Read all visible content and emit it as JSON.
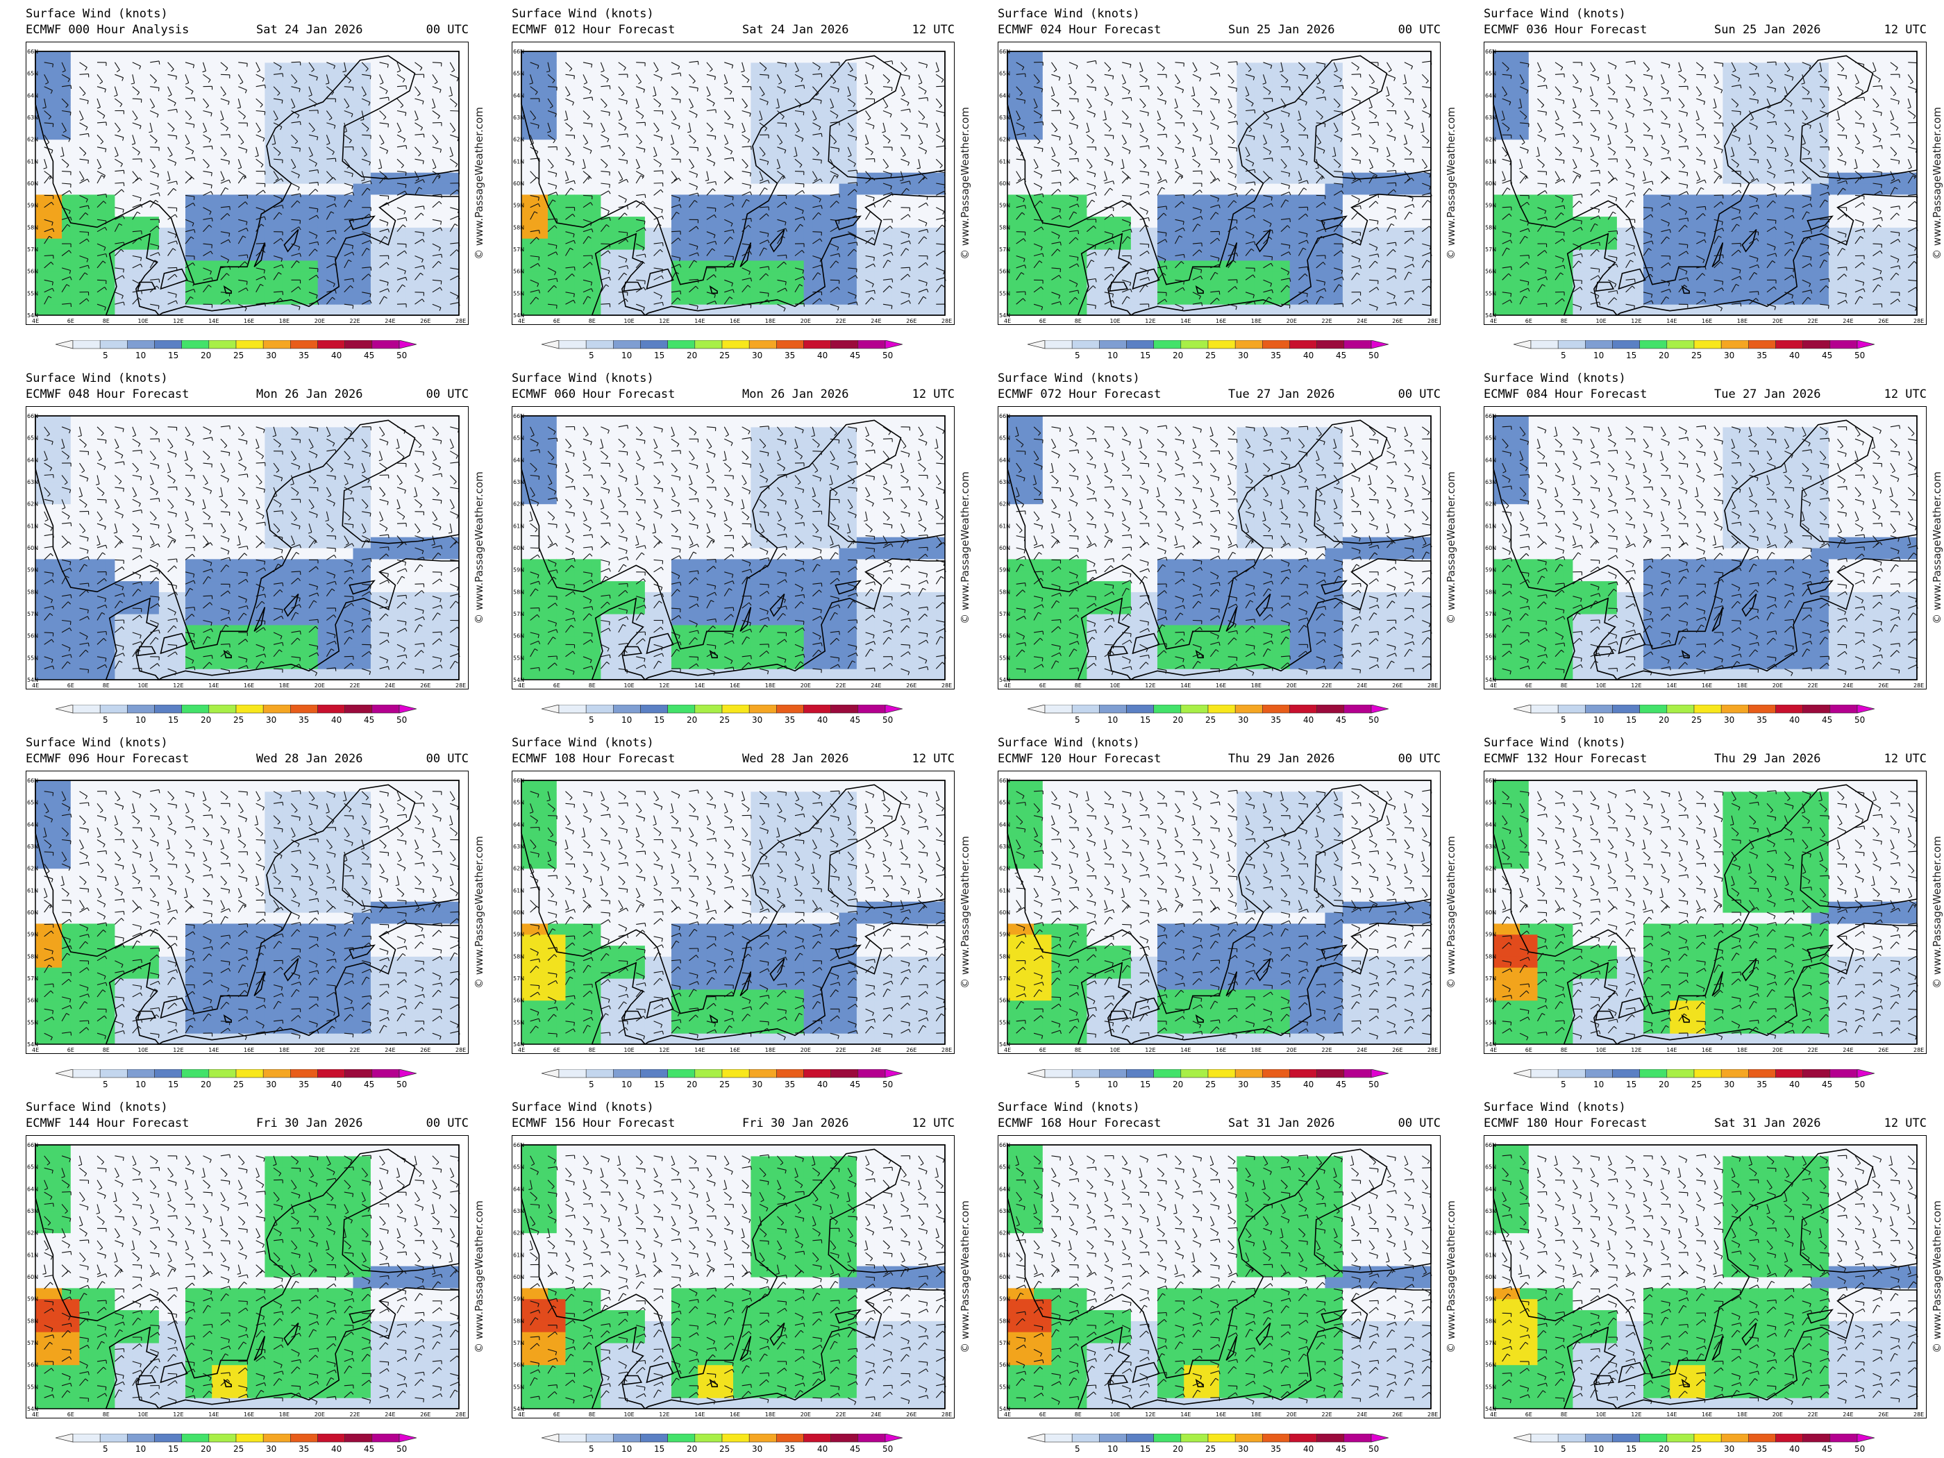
{
  "header_line1": "Surface Wind (knots)",
  "credit": "© www.PassageWeather.com",
  "legend": {
    "ticks": [
      "5",
      "10",
      "15",
      "20",
      "25",
      "30",
      "35",
      "40",
      "45",
      "50"
    ],
    "colors": [
      "#f4f4f4",
      "#e6eef8",
      "#c3d6ee",
      "#7f9ed2",
      "#5b80c4",
      "#43e26a",
      "#a8ef47",
      "#f8e71c",
      "#f5a623",
      "#e85d1a",
      "#c8102e",
      "#9b0a3c",
      "#b4008f",
      "#e000d0"
    ]
  },
  "lat_labels": [
    "66N",
    "65N",
    "64N",
    "63N",
    "62N",
    "61N",
    "60N",
    "59N",
    "58N",
    "57N",
    "56N",
    "55N",
    "54N"
  ],
  "lon_labels": [
    "4E",
    "6E",
    "8E",
    "10E",
    "12E",
    "14E",
    "16E",
    "18E",
    "20E",
    "22E",
    "24E",
    "26E",
    "28E"
  ],
  "colors": {
    "calm": "#f4f6fb",
    "light": "#c9d9ef",
    "moderate": "#6b90cc",
    "fresh": "#47d66c",
    "strong": "#f2e21e",
    "gale": "#f2a41c",
    "storm": "#e24b1c",
    "coast": "#000000"
  },
  "panels": [
    {
      "run": "ECMWF 000 Hour Analysis",
      "date": "Sat 24 Jan 2026",
      "utc": "00 UTC",
      "intensity": 2,
      "baltic": 1
    },
    {
      "run": "ECMWF 012 Hour Forecast",
      "date": "Sat 24 Jan 2026",
      "utc": "12 UTC",
      "intensity": 2,
      "baltic": 1
    },
    {
      "run": "ECMWF 024 Hour Forecast",
      "date": "Sun 25 Jan 2026",
      "utc": "00 UTC",
      "intensity": 1,
      "baltic": 1
    },
    {
      "run": "ECMWF 036 Hour Forecast",
      "date": "Sun 25 Jan 2026",
      "utc": "12 UTC",
      "intensity": 1,
      "baltic": 0
    },
    {
      "run": "ECMWF 048 Hour Forecast",
      "date": "Mon 26 Jan 2026",
      "utc": "00 UTC",
      "intensity": 0,
      "baltic": 1
    },
    {
      "run": "ECMWF 060 Hour Forecast",
      "date": "Mon 26 Jan 2026",
      "utc": "12 UTC",
      "intensity": 1,
      "baltic": 1
    },
    {
      "run": "ECMWF 072 Hour Forecast",
      "date": "Tue 27 Jan 2026",
      "utc": "00 UTC",
      "intensity": 1,
      "baltic": 1
    },
    {
      "run": "ECMWF 084 Hour Forecast",
      "date": "Tue 27 Jan 2026",
      "utc": "12 UTC",
      "intensity": 1,
      "baltic": 0
    },
    {
      "run": "ECMWF 096 Hour Forecast",
      "date": "Wed 28 Jan 2026",
      "utc": "00 UTC",
      "intensity": 2,
      "baltic": 0
    },
    {
      "run": "ECMWF 108 Hour Forecast",
      "date": "Wed 28 Jan 2026",
      "utc": "12 UTC",
      "intensity": 3,
      "baltic": 1
    },
    {
      "run": "ECMWF 120 Hour Forecast",
      "date": "Thu 29 Jan 2026",
      "utc": "00 UTC",
      "intensity": 3,
      "baltic": 1
    },
    {
      "run": "ECMWF 132 Hour Forecast",
      "date": "Thu 29 Jan 2026",
      "utc": "12 UTC",
      "intensity": 4,
      "baltic": 2
    },
    {
      "run": "ECMWF 144 Hour Forecast",
      "date": "Fri 30 Jan 2026",
      "utc": "00 UTC",
      "intensity": 4,
      "baltic": 2
    },
    {
      "run": "ECMWF 156 Hour Forecast",
      "date": "Fri 30 Jan 2026",
      "utc": "12 UTC",
      "intensity": 4,
      "baltic": 2
    },
    {
      "run": "ECMWF 168 Hour Forecast",
      "date": "Sat 31 Jan 2026",
      "utc": "00 UTC",
      "intensity": 4,
      "baltic": 2
    },
    {
      "run": "ECMWF 180 Hour Forecast",
      "date": "Sat 31 Jan 2026",
      "utc": "12 UTC",
      "intensity": 3,
      "baltic": 2
    }
  ]
}
